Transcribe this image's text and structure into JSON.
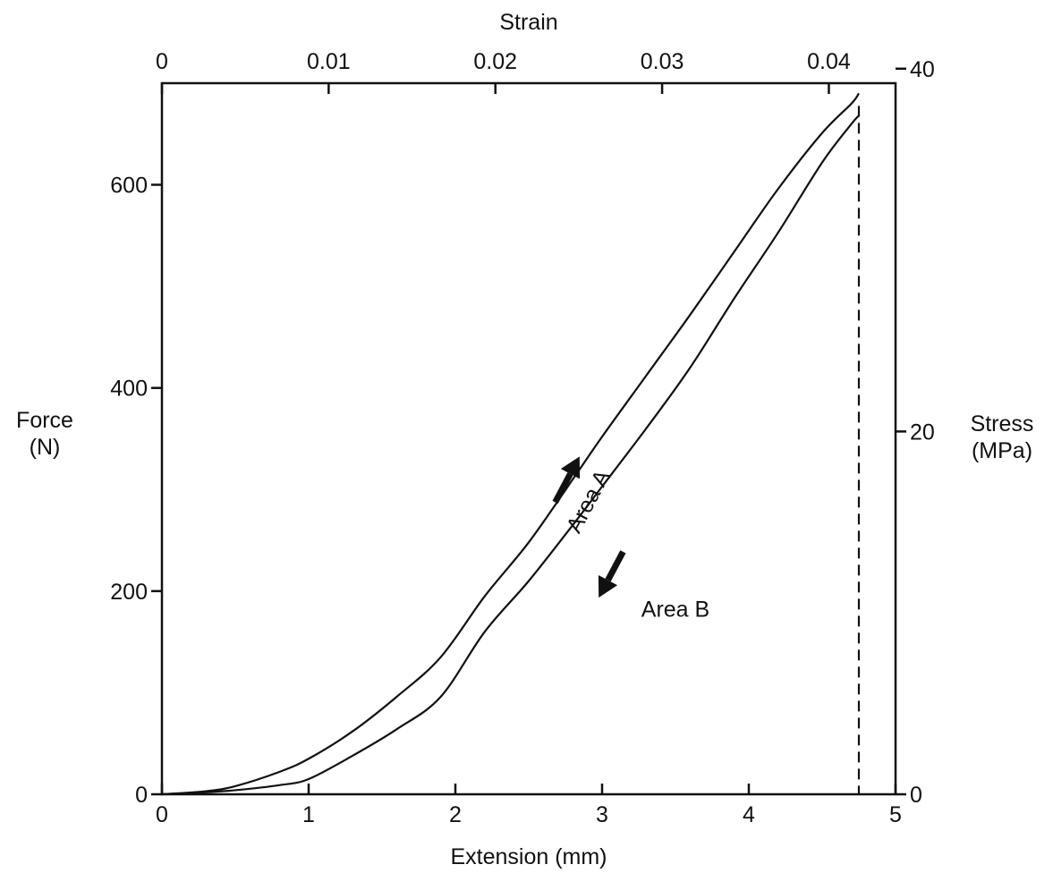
{
  "chart_data": {
    "type": "line",
    "title": "",
    "xlabel": "Extension (mm)",
    "ylabel": "Force\n(N)",
    "x2label": "Strain",
    "y2label": "Stress\n(MPa)",
    "xlim": [
      0,
      5
    ],
    "ylim": [
      0,
      700
    ],
    "x2lim": [
      0,
      0.044
    ],
    "y2lim": [
      0,
      39.2
    ],
    "xticks": [
      0,
      1,
      2,
      3,
      4,
      5
    ],
    "xtick_labels": [
      "0",
      "1",
      "2",
      "3",
      "4",
      "5"
    ],
    "yticks": [
      0,
      200,
      400,
      600
    ],
    "ytick_labels": [
      "0",
      "200",
      "400",
      "600"
    ],
    "x2ticks": [
      0,
      0.01,
      0.02,
      0.03,
      0.04
    ],
    "x2tick_labels": [
      "0",
      "0.01",
      "0.02",
      "0.03",
      "0.04"
    ],
    "y2ticks": [
      0,
      20,
      40
    ],
    "y2tick_labels": [
      "0",
      "20",
      "40"
    ],
    "grid": false,
    "colors": {
      "line": "#111111",
      "background": "#ffffff"
    },
    "series": [
      {
        "role": "loading",
        "x": [
          0,
          0.3,
          0.5,
          0.8,
          1.0,
          1.3,
          1.6,
          1.9,
          2.2,
          2.5,
          2.8,
          3.0,
          3.3,
          3.6,
          3.9,
          4.2,
          4.5,
          4.7,
          4.75
        ],
        "y": [
          0,
          3,
          8,
          22,
          35,
          62,
          96,
          135,
          195,
          248,
          310,
          352,
          412,
          472,
          534,
          596,
          651,
          680,
          690
        ]
      },
      {
        "role": "unloading",
        "x": [
          4.75,
          4.7,
          4.5,
          4.2,
          3.9,
          3.6,
          3.3,
          3.0,
          2.8,
          2.5,
          2.2,
          1.9,
          1.6,
          1.3,
          1.0,
          0.8,
          0.5,
          0.3,
          0
        ],
        "y": [
          668,
          660,
          622,
          553,
          488,
          420,
          360,
          303,
          265,
          210,
          160,
          96,
          64,
          38,
          15,
          9,
          4,
          2,
          0
        ]
      }
    ],
    "reference_line": {
      "x": 4.75,
      "style": "dashed"
    },
    "annotations": [
      {
        "text": "Area A",
        "x": 2.95,
        "y": 285,
        "rotation": -62
      },
      {
        "text": "Area B",
        "x": 3.5,
        "y": 175
      }
    ],
    "arrows": [
      {
        "direction": "up",
        "x": 2.8,
        "y": 310
      },
      {
        "direction": "down",
        "x": 2.95,
        "y": 225
      }
    ]
  }
}
